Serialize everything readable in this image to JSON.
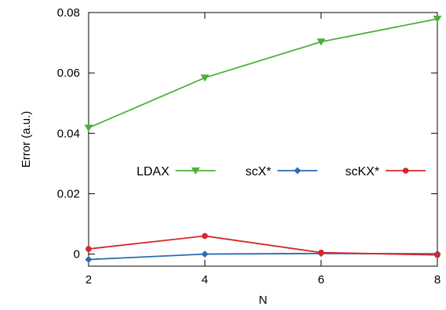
{
  "chart_data": {
    "type": "line",
    "title": "",
    "xlabel": "N",
    "ylabel": "Error (a.u.)",
    "xlim": [
      2,
      8
    ],
    "ylim": [
      -0.004,
      0.08
    ],
    "x": [
      2,
      4,
      6,
      8
    ],
    "x_ticks": [
      "2",
      "4",
      "6",
      "8"
    ],
    "y_ticks": [
      0,
      0.02,
      0.04,
      0.06,
      0.08
    ],
    "y_tick_labels": [
      "0",
      "0.02",
      "0.04",
      "0.06",
      "0.08"
    ],
    "grid": false,
    "legend_position": "middle, horizontal",
    "series": [
      {
        "name": "LDAX",
        "values": [
          0.0418,
          0.0584,
          0.0703,
          0.0779
        ],
        "color": "#4daf3a",
        "marker": "triangle-down"
      },
      {
        "name": "scX*",
        "values": [
          -0.0018,
          0.0,
          0.0002,
          0.0001
        ],
        "color": "#2b6cb0",
        "marker": "diamond"
      },
      {
        "name": "scKX*",
        "values": [
          0.0017,
          0.006,
          0.0005,
          -0.0003
        ],
        "color": "#d62728",
        "marker": "circle"
      }
    ]
  }
}
